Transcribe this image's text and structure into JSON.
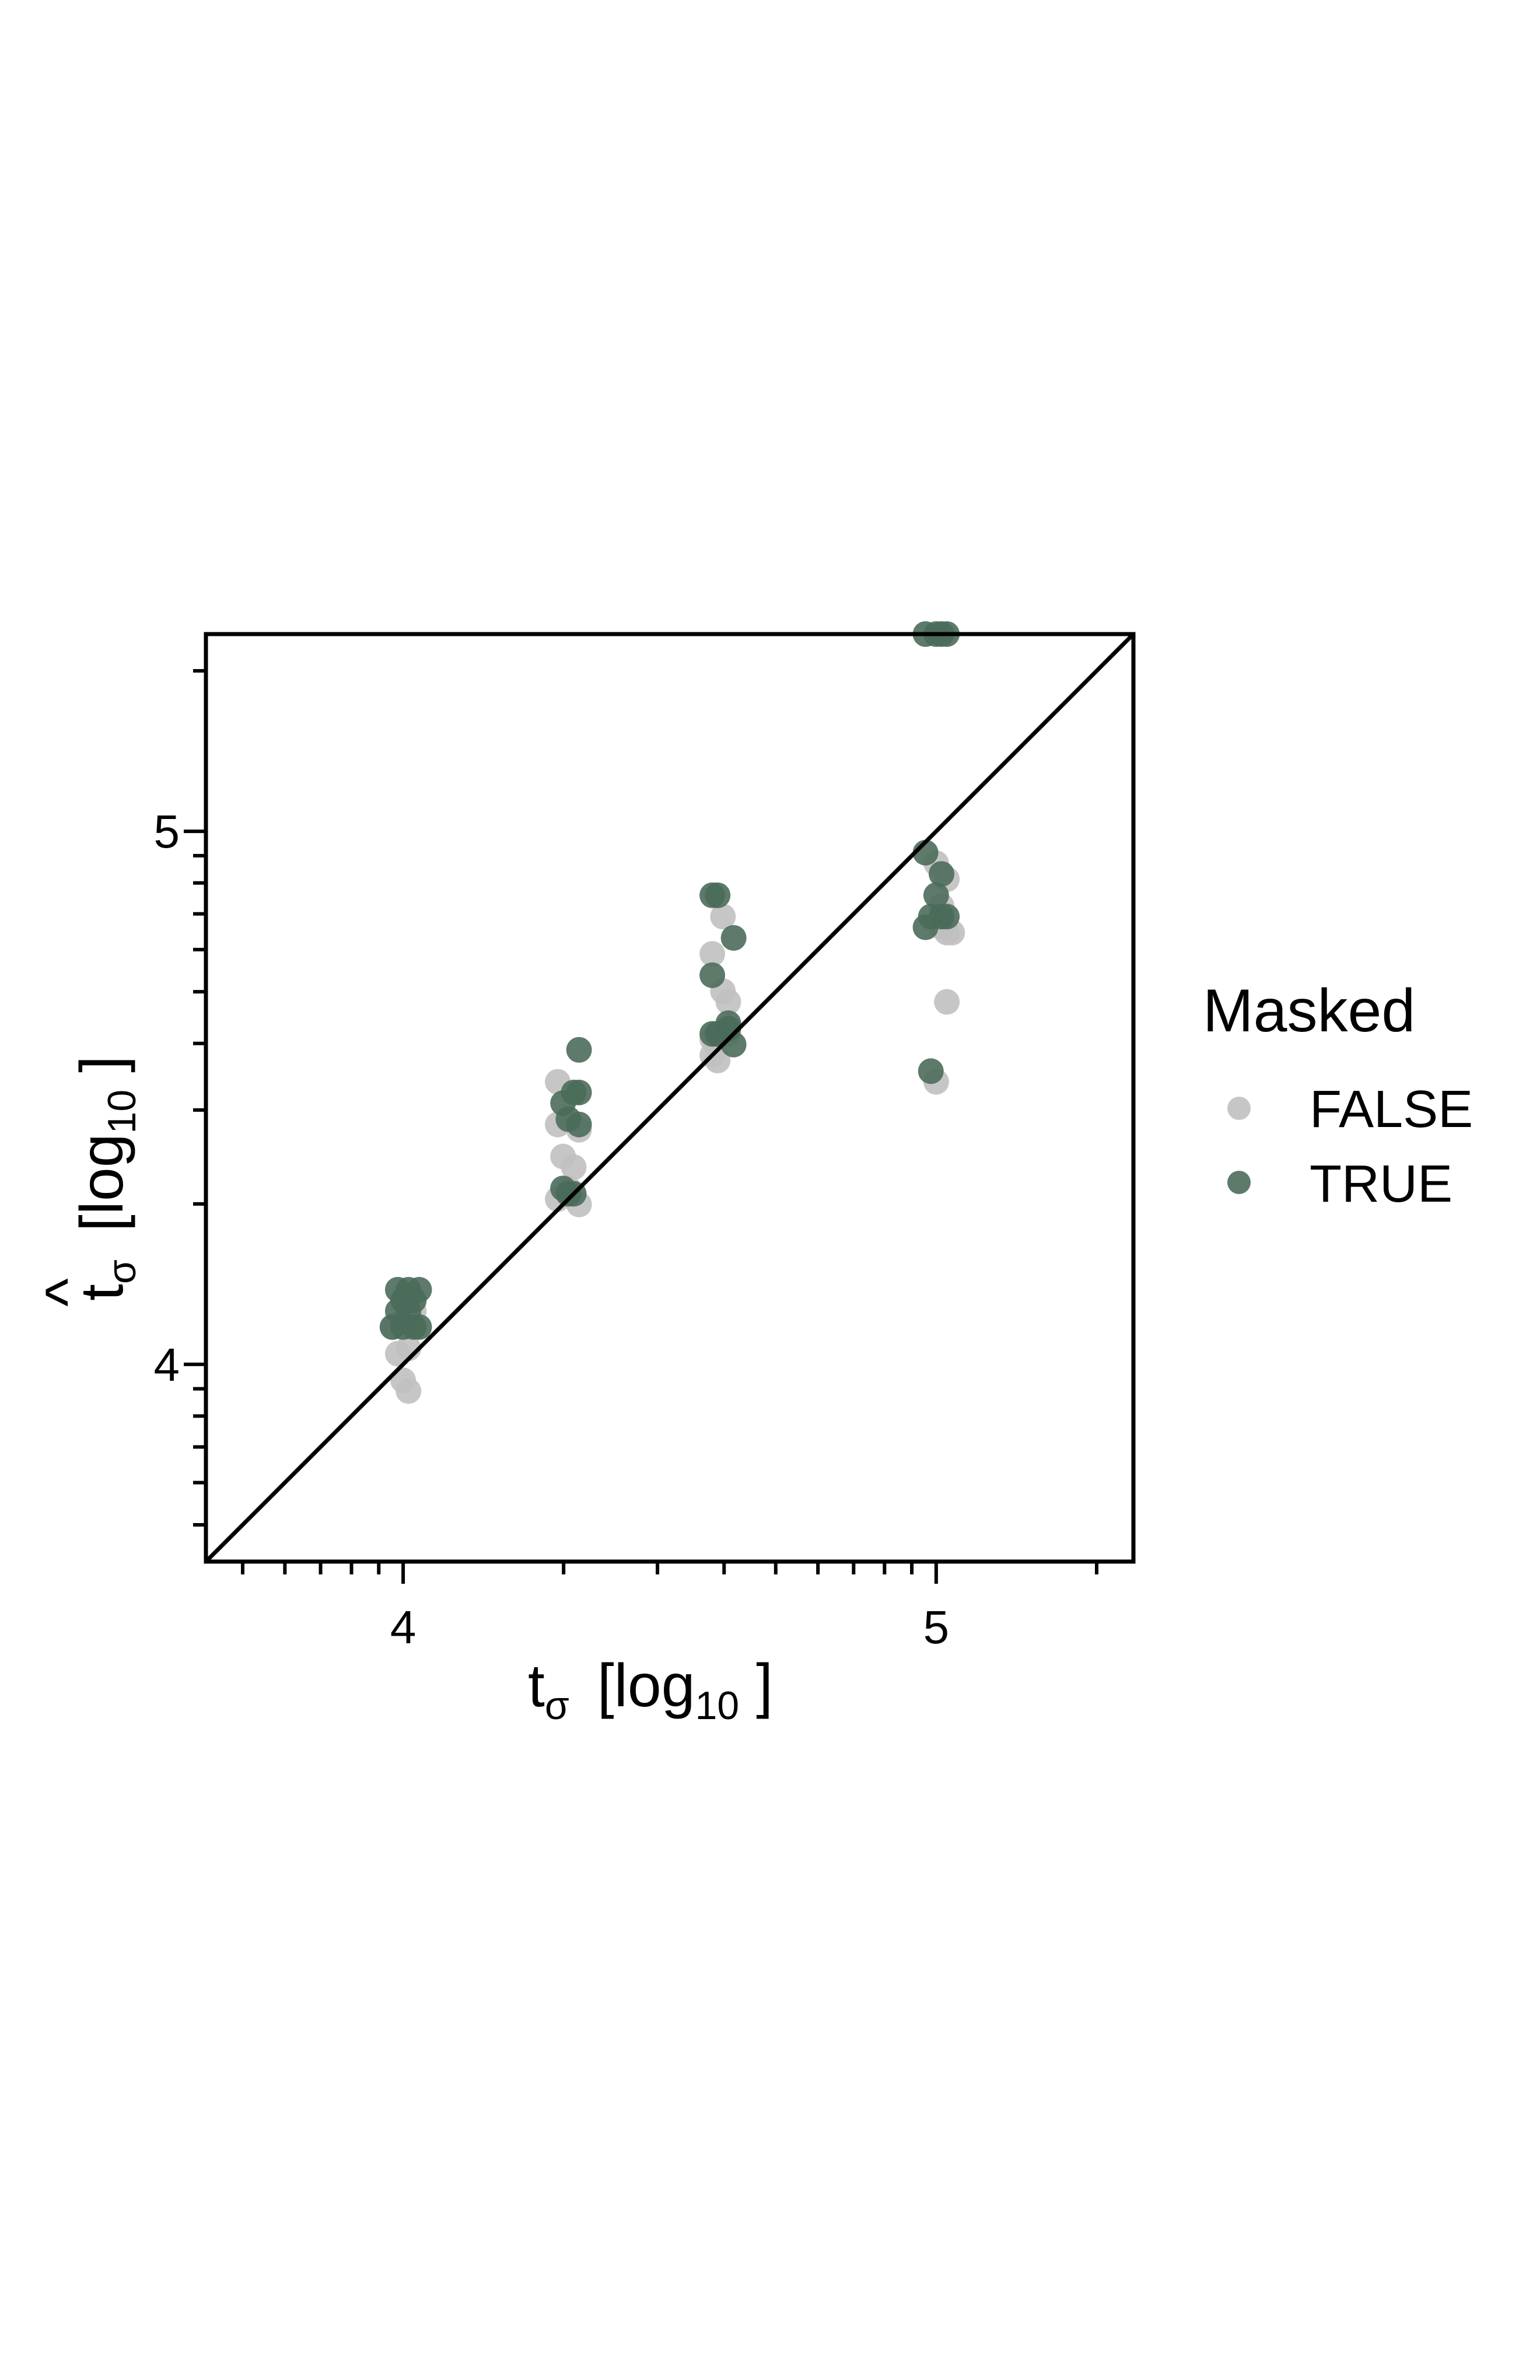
{
  "chart_data": {
    "type": "scatter",
    "xlabel": {
      "base": "t",
      "sub": "σ",
      "bracket_open": "[log",
      "bracket_sub": "10",
      "bracket_close": " ]"
    },
    "ylabel": {
      "hat": "^",
      "base": "t",
      "sub": "σ",
      "bracket_open": "[log",
      "bracket_sub": "10",
      "bracket_close": " ]"
    },
    "xlim": [
      3.63,
      5.37
    ],
    "ylim": [
      3.63,
      5.37
    ],
    "x_scale": "log10 exponent",
    "y_scale": "log10 exponent",
    "x_ticks": [
      {
        "value": 4,
        "label": "4"
      },
      {
        "value": 5,
        "label": "5"
      }
    ],
    "y_ticks": [
      {
        "value": 4,
        "label": "4"
      },
      {
        "value": 5,
        "label": "5"
      }
    ],
    "reference_line": "y = x",
    "grid": false,
    "legend": {
      "title": "Masked",
      "placement": "right",
      "entries": [
        {
          "label": "FALSE",
          "color": "#c0c0c0"
        },
        {
          "label": "TRUE",
          "color": "#4b6b5a"
        }
      ]
    },
    "series": [
      {
        "name": "FALSE",
        "color": "#c0c0c0",
        "points": [
          [
            4.0,
            3.97
          ],
          [
            4.01,
            3.95
          ],
          [
            3.99,
            4.02
          ],
          [
            4.01,
            4.03
          ],
          [
            3.98,
            4.07
          ],
          [
            4.02,
            4.1
          ],
          [
            4.0,
            4.08
          ],
          [
            4.29,
            4.53
          ],
          [
            4.29,
            4.45
          ],
          [
            4.33,
            4.44
          ],
          [
            4.3,
            4.39
          ],
          [
            4.32,
            4.37
          ],
          [
            4.29,
            4.31
          ],
          [
            4.33,
            4.3
          ],
          [
            4.31,
            4.33
          ],
          [
            4.6,
            4.84
          ],
          [
            4.58,
            4.77
          ],
          [
            4.6,
            4.7
          ],
          [
            4.61,
            4.68
          ],
          [
            4.58,
            4.58
          ],
          [
            4.59,
            4.57
          ],
          [
            4.61,
            4.62
          ],
          [
            4.58,
            4.61
          ],
          [
            5.0,
            4.94
          ],
          [
            5.02,
            4.91
          ],
          [
            5.01,
            4.86
          ],
          [
            5.02,
            4.81
          ],
          [
            5.03,
            4.81
          ],
          [
            5.01,
            4.82
          ],
          [
            5.02,
            4.68
          ],
          [
            5.0,
            4.53
          ]
        ]
      },
      {
        "name": "TRUE",
        "color": "#4b6b5a",
        "points": [
          [
            3.99,
            4.14
          ],
          [
            4.01,
            4.14
          ],
          [
            4.03,
            4.14
          ],
          [
            4.0,
            4.12
          ],
          [
            4.02,
            4.12
          ],
          [
            3.99,
            4.1
          ],
          [
            4.01,
            4.1
          ],
          [
            3.98,
            4.07
          ],
          [
            4.0,
            4.07
          ],
          [
            4.02,
            4.07
          ],
          [
            4.03,
            4.07
          ],
          [
            4.33,
            4.59
          ],
          [
            4.32,
            4.51
          ],
          [
            4.33,
            4.51
          ],
          [
            4.3,
            4.49
          ],
          [
            4.31,
            4.46
          ],
          [
            4.33,
            4.45
          ],
          [
            4.3,
            4.33
          ],
          [
            4.32,
            4.32
          ],
          [
            4.31,
            4.32
          ],
          [
            4.58,
            4.88
          ],
          [
            4.59,
            4.88
          ],
          [
            4.62,
            4.8
          ],
          [
            4.58,
            4.73
          ],
          [
            4.61,
            4.64
          ],
          [
            4.58,
            4.62
          ],
          [
            4.61,
            4.63
          ],
          [
            4.59,
            4.62
          ],
          [
            4.62,
            4.6
          ],
          [
            4.98,
            4.96
          ],
          [
            5.01,
            4.92
          ],
          [
            5.0,
            4.88
          ],
          [
            4.99,
            4.84
          ],
          [
            5.01,
            4.84
          ],
          [
            5.02,
            4.84
          ],
          [
            4.98,
            4.82
          ],
          [
            4.99,
            4.55
          ]
        ]
      },
      {
        "name": "TRUE",
        "color": "#4b6b5a",
        "points": [
          [
            4.98,
            5.37
          ],
          [
            5.0,
            5.37
          ],
          [
            5.01,
            5.37
          ],
          [
            5.02,
            5.37
          ]
        ]
      }
    ]
  }
}
